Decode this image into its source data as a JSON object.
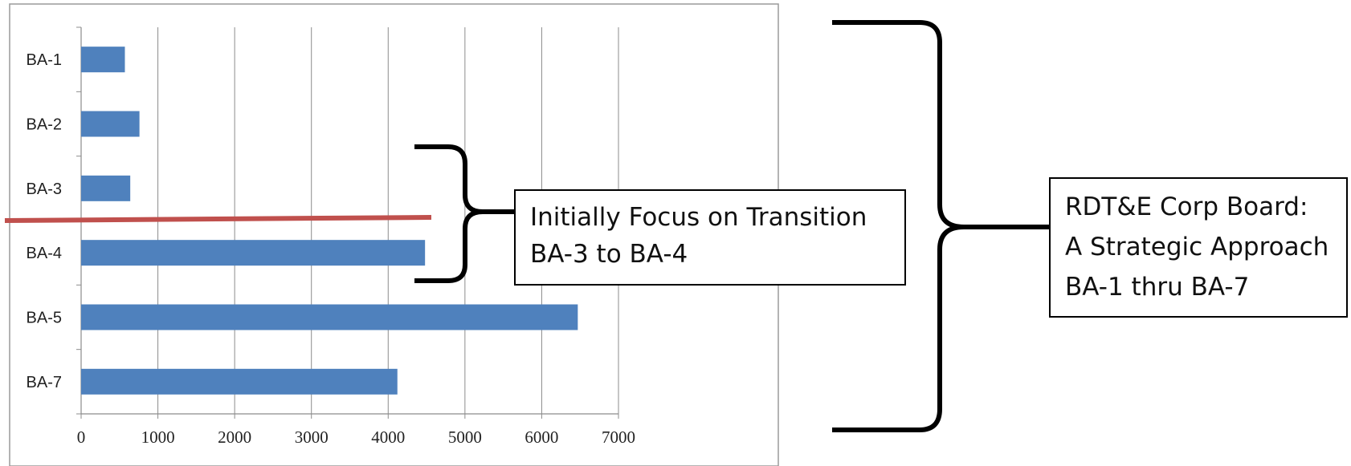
{
  "chart_data": {
    "type": "bar",
    "orientation": "horizontal",
    "categories": [
      "BA-1",
      "BA-2",
      "BA-3",
      "BA-4",
      "BA-5",
      "BA-7"
    ],
    "values": [
      570,
      760,
      640,
      4480,
      6470,
      4120
    ],
    "xlim": [
      0,
      7000
    ],
    "xticks": [
      0,
      1000,
      2000,
      3000,
      4000,
      5000,
      6000,
      7000
    ],
    "grid": "vertical",
    "bar_color": "#4f81bd",
    "annotations": {
      "transition": {
        "lines": [
          "Initially Focus on Transition",
          "BA-3 to BA-4"
        ]
      },
      "board": {
        "lines": [
          "RDT&E Corp Board:",
          "A Strategic Approach",
          "BA-1 thru BA-7"
        ]
      },
      "divider_color": "#c0504d"
    }
  }
}
